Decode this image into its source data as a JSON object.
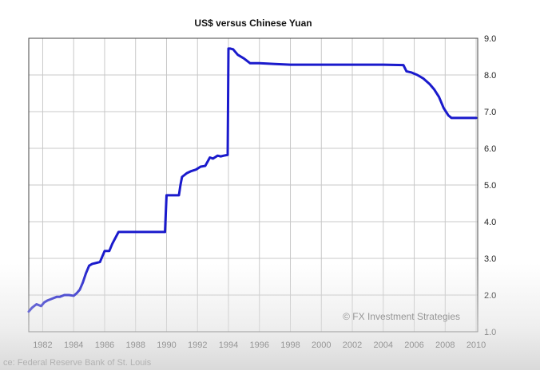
{
  "chart_data": {
    "type": "line",
    "title": "US$ versus Chinese Yuan",
    "xlabel": "",
    "ylabel": "",
    "xlim": [
      1981.1,
      2010.1
    ],
    "ylim": [
      1.0,
      9.0
    ],
    "x_ticks": [
      1982,
      1984,
      1986,
      1988,
      1990,
      1992,
      1994,
      1996,
      1998,
      2000,
      2002,
      2004,
      2006,
      2008,
      2010
    ],
    "x_tick_labels": [
      "1982",
      "1984",
      "1986",
      "1988",
      "1990",
      "1992",
      "1994",
      "1996",
      "1998",
      "2000",
      "2002",
      "2004",
      "2006",
      "2008",
      "2010"
    ],
    "y_ticks": [
      1.0,
      2.0,
      3.0,
      4.0,
      5.0,
      6.0,
      7.0,
      8.0,
      9.0
    ],
    "y_tick_labels": [
      "1.0",
      "2.0",
      "3.0",
      "4.0",
      "5.0",
      "6.0",
      "7.0",
      "8.0",
      "9.0"
    ],
    "y_axis_side": "right",
    "grid": true,
    "line_color": "#1a1acc",
    "series": [
      {
        "name": "",
        "x": [
          1981.1,
          1981.3,
          1981.6,
          1981.9,
          1982.1,
          1982.3,
          1982.6,
          1982.9,
          1983.1,
          1983.4,
          1983.7,
          1984.0,
          1984.2,
          1984.4,
          1984.6,
          1984.8,
          1985.0,
          1985.2,
          1985.4,
          1985.7,
          1986.0,
          1986.2,
          1986.3,
          1986.5,
          1986.9,
          1987.0,
          1988.0,
          1989.0,
          1989.9,
          1990.0,
          1990.8,
          1990.9,
          1991.0,
          1991.3,
          1991.6,
          1991.9,
          1992.2,
          1992.5,
          1992.8,
          1993.0,
          1993.3,
          1993.5,
          1993.7,
          1993.95,
          1994.0,
          1994.1,
          1994.3,
          1994.6,
          1995.0,
          1995.4,
          1996.0,
          1997.0,
          1998.0,
          1999.0,
          2000.0,
          2001.0,
          2002.0,
          2003.0,
          2004.0,
          2005.3,
          2005.5,
          2005.8,
          2006.2,
          2006.6,
          2007.0,
          2007.3,
          2007.6,
          2007.9,
          2008.2,
          2008.4,
          2008.6,
          2009.0,
          2009.5,
          2010.0
        ],
        "y": [
          1.55,
          1.65,
          1.75,
          1.7,
          1.8,
          1.85,
          1.9,
          1.95,
          1.95,
          2.0,
          2.0,
          1.98,
          2.05,
          2.15,
          2.35,
          2.6,
          2.8,
          2.85,
          2.87,
          2.9,
          3.2,
          3.2,
          3.2,
          3.4,
          3.72,
          3.72,
          3.72,
          3.72,
          3.72,
          4.72,
          4.72,
          5.0,
          5.22,
          5.32,
          5.38,
          5.42,
          5.5,
          5.52,
          5.75,
          5.72,
          5.8,
          5.78,
          5.8,
          5.82,
          8.72,
          8.72,
          8.7,
          8.55,
          8.45,
          8.32,
          8.32,
          8.3,
          8.28,
          8.28,
          8.28,
          8.28,
          8.28,
          8.28,
          8.28,
          8.27,
          8.1,
          8.07,
          8.0,
          7.9,
          7.75,
          7.6,
          7.4,
          7.1,
          6.9,
          6.83,
          6.83,
          6.83,
          6.83,
          6.83
        ]
      }
    ],
    "annotations": [
      {
        "text": "© FX Investment Strategies",
        "position": "bottom-right"
      }
    ],
    "source_text": "ce: Federal Reserve Bank of St. Louis"
  }
}
